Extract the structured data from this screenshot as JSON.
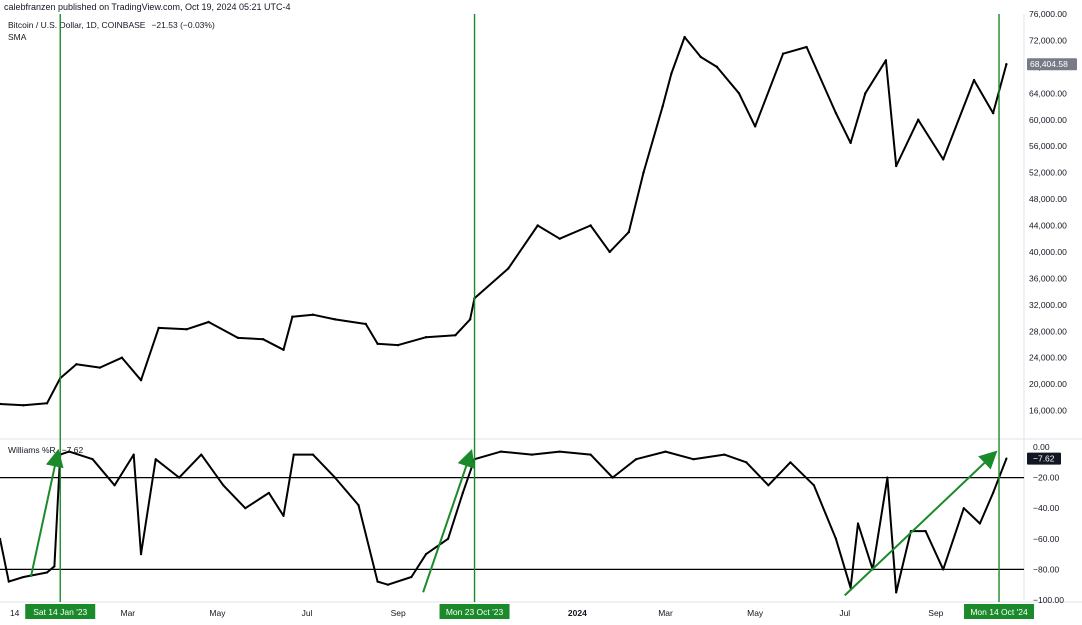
{
  "header": "calebfranzen published on TradingView.com, Oct 19, 2024 05:21 UTC-4",
  "legend": {
    "symbol": "Bitcoin / U.S. Dollar, 1D, COINBASE",
    "change": "−21.53 (−0.03%)",
    "sma": "SMA",
    "wr_name": "Williams %R",
    "wr_value": "−7.62"
  },
  "colors": {
    "price_line": "#000000",
    "markers": "#1b8a2b",
    "badge_dark": "#131722",
    "badge_green": "#1b8a2b",
    "current_price_badge": "#787b86"
  },
  "chart_data": [
    {
      "type": "line",
      "name": "Bitcoin / U.S. Dollar, 1D, COINBASE",
      "x": [
        "2022-12-04",
        "2022-12-20",
        "2023-01-05",
        "2023-01-14",
        "2023-01-25",
        "2023-02-10",
        "2023-02-25",
        "2023-03-10",
        "2023-03-22",
        "2023-04-10",
        "2023-04-25",
        "2023-05-15",
        "2023-06-01",
        "2023-06-15",
        "2023-06-21",
        "2023-07-05",
        "2023-07-20",
        "2023-08-10",
        "2023-08-18",
        "2023-09-01",
        "2023-09-20",
        "2023-10-10",
        "2023-10-20",
        "2023-10-23",
        "2023-11-15",
        "2023-12-05",
        "2023-12-20",
        "2024-01-10",
        "2024-01-23",
        "2024-02-05",
        "2024-02-15",
        "2024-02-28",
        "2024-03-05",
        "2024-03-14",
        "2024-03-25",
        "2024-04-05",
        "2024-04-20",
        "2024-05-01",
        "2024-05-20",
        "2024-06-05",
        "2024-06-25",
        "2024-07-05",
        "2024-07-15",
        "2024-07-29",
        "2024-08-05",
        "2024-08-20",
        "2024-09-06",
        "2024-09-27",
        "2024-10-10",
        "2024-10-19"
      ],
      "values": [
        17000,
        16800,
        17100,
        20900,
        23000,
        22500,
        24000,
        20600,
        28500,
        28300,
        29400,
        27000,
        26800,
        25200,
        30200,
        30500,
        29800,
        29100,
        26100,
        25900,
        27100,
        27400,
        29800,
        33000,
        37500,
        44000,
        42000,
        44000,
        40000,
        43000,
        52000,
        62000,
        67000,
        72500,
        69500,
        68000,
        64000,
        59000,
        70000,
        71000,
        61000,
        56500,
        64000,
        69000,
        53000,
        60000,
        54000,
        66000,
        61000,
        68404.58
      ],
      "ylim": [
        12000,
        76000
      ],
      "ticks": [
        "16,000.00",
        "20,000.00",
        "24,000.00",
        "28,000.00",
        "32,000.00",
        "36,000.00",
        "40,000.00",
        "44,000.00",
        "48,000.00",
        "52,000.00",
        "56,000.00",
        "60,000.00",
        "64,000.00",
        "68,000.00",
        "72,000.00",
        "76,000.00"
      ],
      "last_label": "68,404.58"
    },
    {
      "type": "line",
      "name": "Williams %R",
      "x": [
        "2022-12-04",
        "2022-12-10",
        "2022-12-20",
        "2023-01-05",
        "2023-01-10",
        "2023-01-14",
        "2023-01-20",
        "2023-02-05",
        "2023-02-20",
        "2023-03-05",
        "2023-03-10",
        "2023-03-20",
        "2023-04-05",
        "2023-04-20",
        "2023-05-05",
        "2023-05-20",
        "2023-06-05",
        "2023-06-15",
        "2023-06-22",
        "2023-07-05",
        "2023-07-20",
        "2023-08-05",
        "2023-08-18",
        "2023-08-25",
        "2023-09-10",
        "2023-09-20",
        "2023-10-05",
        "2023-10-15",
        "2023-10-23",
        "2023-11-10",
        "2023-12-01",
        "2023-12-20",
        "2024-01-10",
        "2024-01-25",
        "2024-02-10",
        "2024-03-01",
        "2024-03-20",
        "2024-04-10",
        "2024-04-25",
        "2024-05-10",
        "2024-05-25",
        "2024-06-10",
        "2024-06-25",
        "2024-07-05",
        "2024-07-10",
        "2024-07-20",
        "2024-07-30",
        "2024-08-05",
        "2024-08-15",
        "2024-08-25",
        "2024-09-06",
        "2024-09-20",
        "2024-10-01",
        "2024-10-10",
        "2024-10-19"
      ],
      "values": [
        -60,
        -88,
        -85,
        -82,
        -78,
        -5,
        -3,
        -8,
        -25,
        -5,
        -70,
        -8,
        -20,
        -5,
        -25,
        -40,
        -30,
        -45,
        -5,
        -5,
        -20,
        -38,
        -88,
        -90,
        -85,
        -70,
        -60,
        -30,
        -8,
        -3,
        -5,
        -3,
        -5,
        -20,
        -8,
        -3,
        -8,
        -5,
        -10,
        -25,
        -10,
        -25,
        -60,
        -92,
        -50,
        -80,
        -20,
        -95,
        -55,
        -55,
        -80,
        -40,
        -50,
        -30,
        -7.62
      ],
      "ylim": [
        -100,
        0
      ],
      "ticks": [
        "0.00",
        "−20.00",
        "−40.00",
        "−60.00",
        "−80.00",
        "−100.00"
      ],
      "levels": [
        -20,
        -80
      ],
      "last_label": "−7.62"
    }
  ],
  "x_axis": {
    "range": [
      "2022-12-04",
      "2024-10-31"
    ],
    "ticks": [
      {
        "date": "2022-12-14",
        "label": "14",
        "bold": false
      },
      {
        "date": "2023-03-01",
        "label": "Mar",
        "bold": false
      },
      {
        "date": "2023-05-01",
        "label": "May",
        "bold": false
      },
      {
        "date": "2023-07-01",
        "label": "Jul",
        "bold": false
      },
      {
        "date": "2023-09-01",
        "label": "Sep",
        "bold": false
      },
      {
        "date": "2024-01-01",
        "label": "2024",
        "bold": true
      },
      {
        "date": "2024-03-01",
        "label": "Mar",
        "bold": false
      },
      {
        "date": "2024-05-01",
        "label": "May",
        "bold": false
      },
      {
        "date": "2024-07-01",
        "label": "Jul",
        "bold": false
      },
      {
        "date": "2024-09-01",
        "label": "Sep",
        "bold": false
      }
    ]
  },
  "markers": [
    {
      "date": "2023-01-14",
      "label": "Sat 14 Jan '23"
    },
    {
      "date": "2023-10-23",
      "label": "Mon 23 Oct '23"
    },
    {
      "date": "2024-10-14",
      "label": "Mon 14 Oct '24"
    }
  ],
  "arrows": [
    {
      "from": {
        "date": "2022-12-25",
        "wr": -85
      },
      "to": {
        "date": "2023-01-12",
        "wr": -5
      }
    },
    {
      "from": {
        "date": "2023-09-18",
        "wr": -95
      },
      "to": {
        "date": "2023-10-20",
        "wr": -5
      }
    },
    {
      "from": {
        "date": "2024-07-01",
        "wr": -97
      },
      "to": {
        "date": "2024-10-10",
        "wr": -5
      }
    }
  ]
}
